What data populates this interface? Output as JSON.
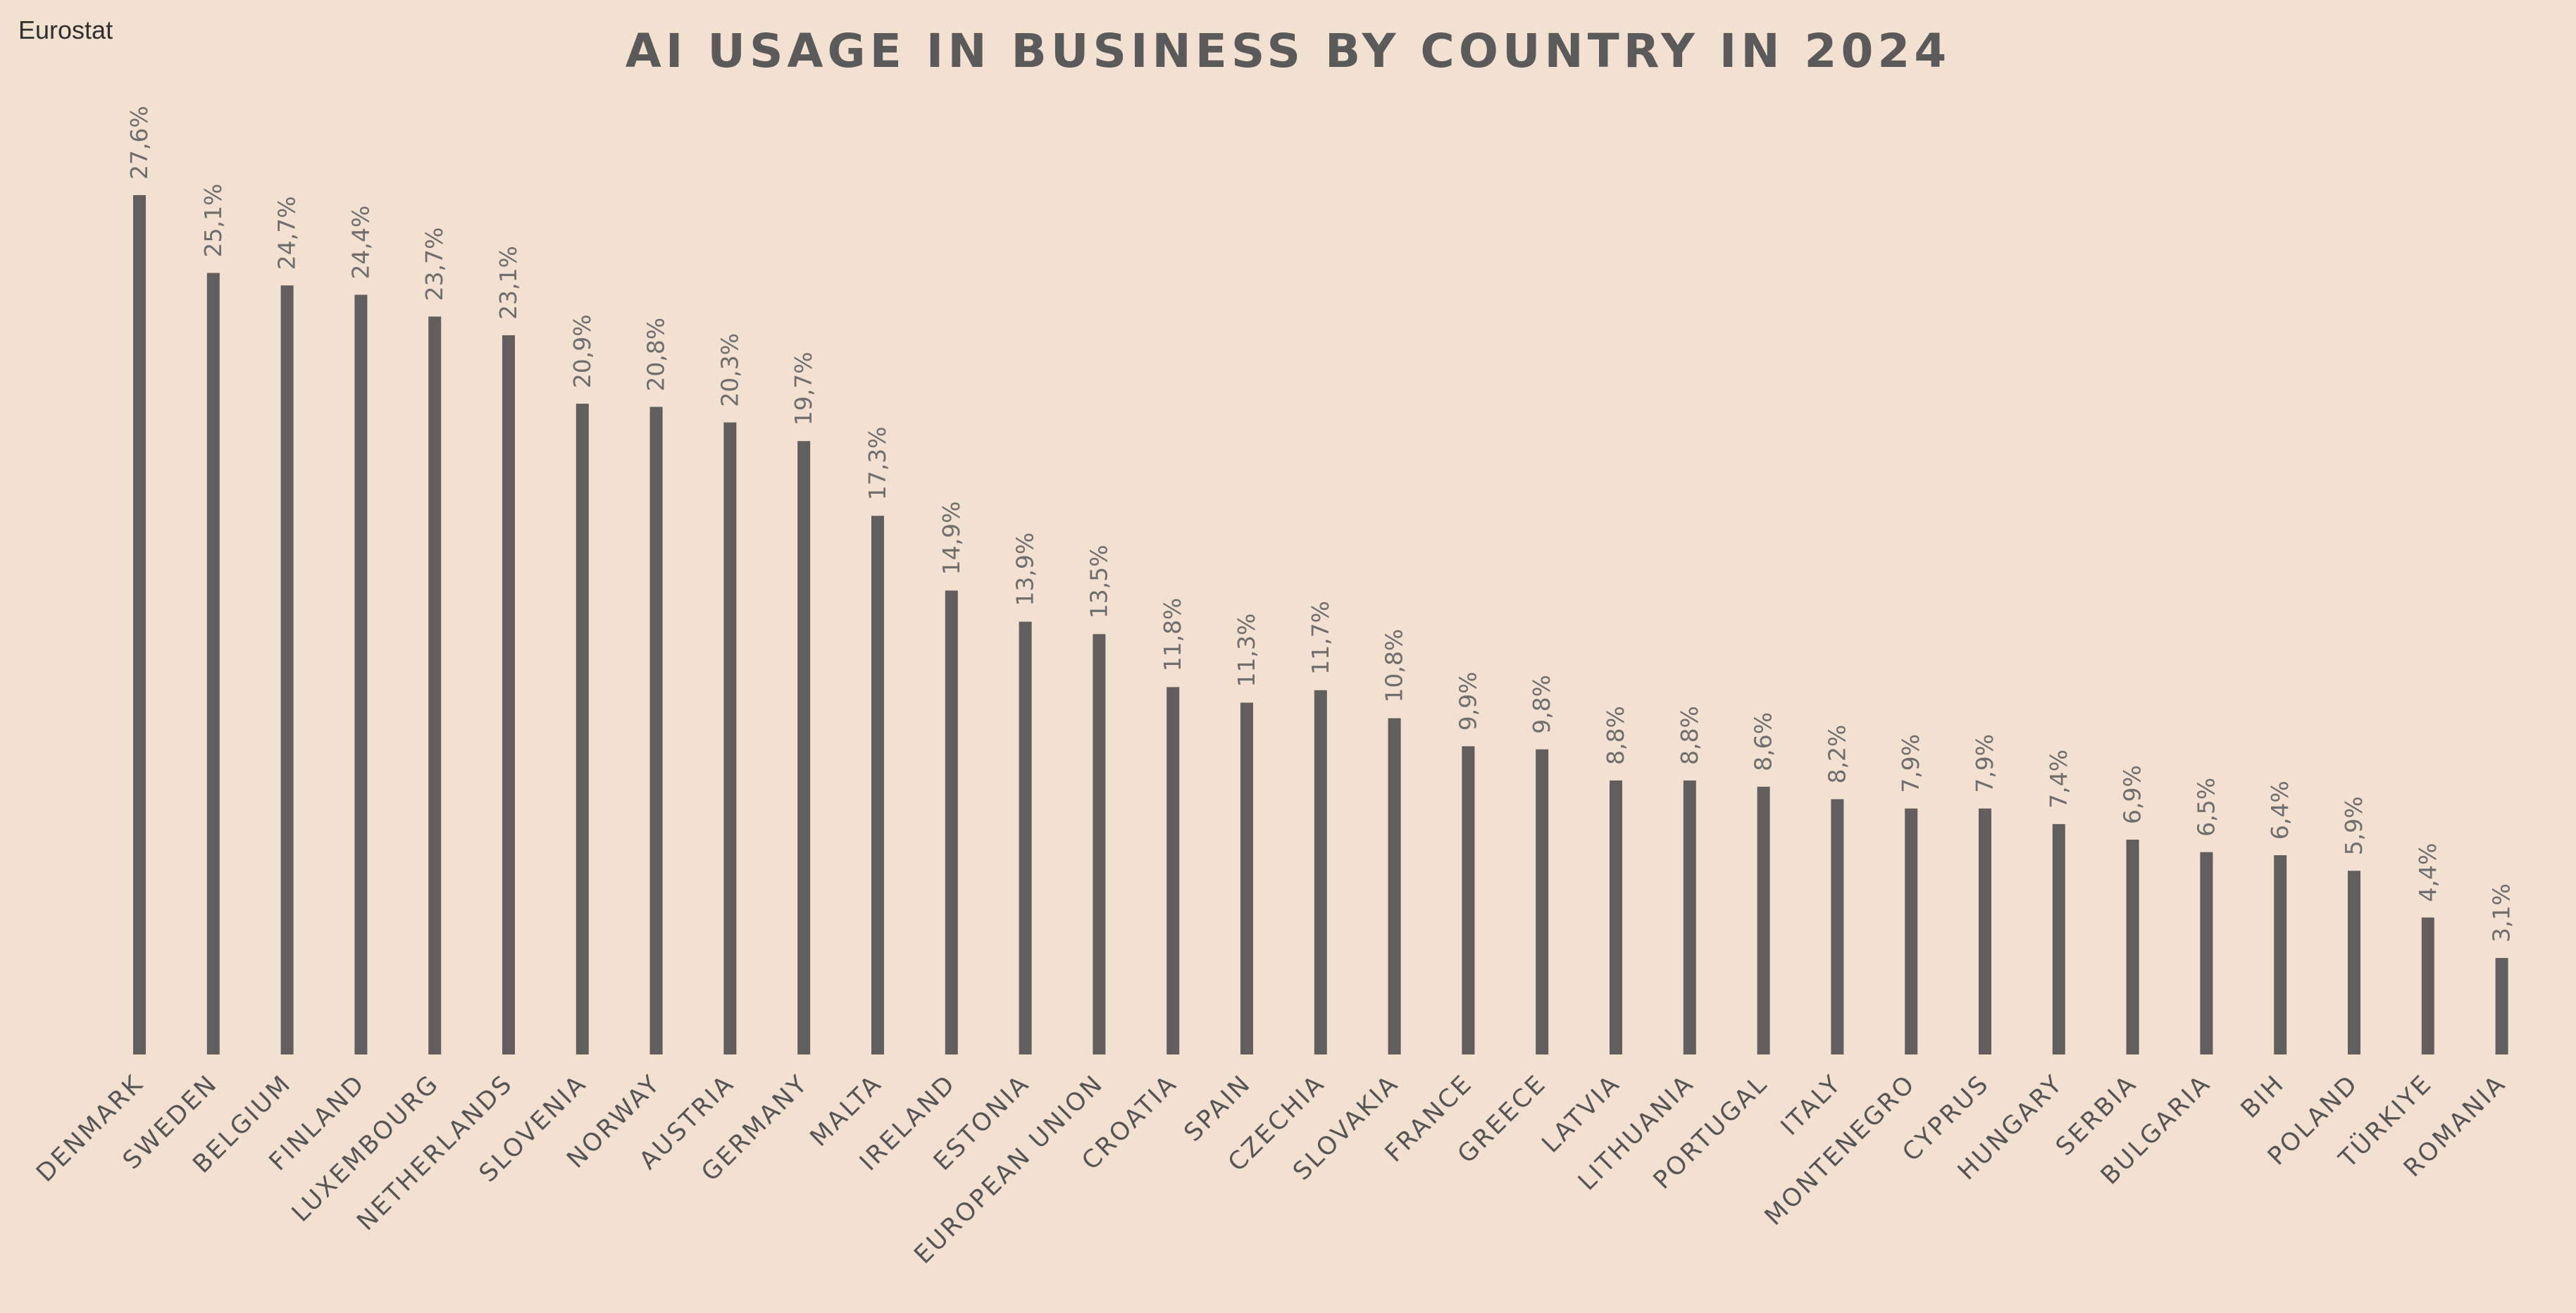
{
  "source": "Eurostat",
  "chart_data": {
    "type": "bar",
    "title": "AI USAGE IN BUSINESS BY COUNTRY IN 2024",
    "xlabel": "",
    "ylabel": "",
    "grid": false,
    "legend": "none",
    "bar_color": "#605f5e",
    "background_color": "#f2e0d1",
    "categories": [
      "DENMARK",
      "SWEDEN",
      "BELGIUM",
      "FINLAND",
      "LUXEMBOURG",
      "NETHERLANDS",
      "SLOVENIA",
      "NORWAY",
      "AUSTRIA",
      "GERMANY",
      "MALTA",
      "IRELAND",
      "ESTONIA",
      "EUROPEAN UNION",
      "CROATIA",
      "SPAIN",
      "CZECHIA",
      "SLOVAKIA",
      "FRANCE",
      "GREECE",
      "LATVIA",
      "LITHUANIA",
      "PORTUGAL",
      "ITALY",
      "MONTENEGRO",
      "CYPRUS",
      "HUNGARY",
      "SERBIA",
      "BULGARIA",
      "BIH",
      "POLAND",
      "TÜRKIYE",
      "ROMANIA"
    ],
    "values": [
      27.6,
      25.1,
      24.7,
      24.4,
      23.7,
      23.1,
      20.9,
      20.8,
      20.3,
      19.7,
      17.3,
      14.9,
      13.9,
      13.5,
      11.8,
      11.3,
      11.7,
      10.8,
      9.9,
      9.8,
      8.8,
      8.8,
      8.6,
      8.2,
      7.9,
      7.9,
      7.4,
      6.9,
      6.5,
      6.4,
      5.9,
      4.4,
      3.1
    ],
    "value_labels": [
      "27,6%",
      "25,1%",
      "24,7%",
      "24,4%",
      "23,7%",
      "23,1%",
      "20,9%",
      "20,8%",
      "20,3%",
      "19,7%",
      "17,3%",
      "14,9%",
      "13,9%",
      "13,5%",
      "11,8%",
      "11,3%",
      "11,7%",
      "10,8%",
      "9,9%",
      "9,8%",
      "8,8%",
      "8,8%",
      "8,6%",
      "8,2%",
      "7,9%",
      "7,9%",
      "7,4%",
      "6,9%",
      "6,5%",
      "6,4%",
      "5,9%",
      "4,4%",
      "3,1%"
    ],
    "ylim": [
      0,
      27.6
    ]
  }
}
